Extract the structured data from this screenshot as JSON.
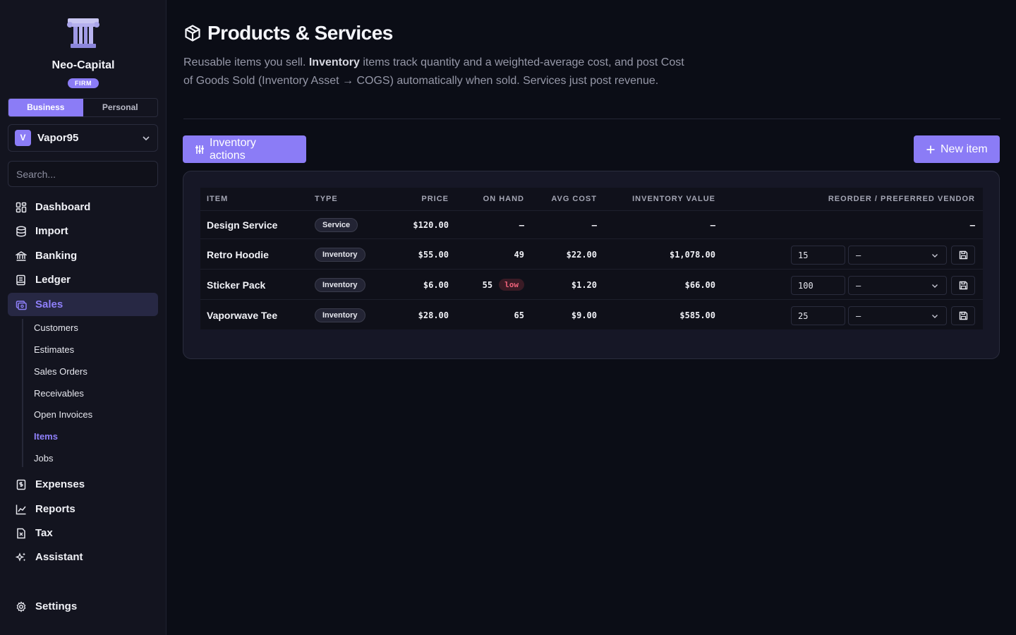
{
  "sidebar": {
    "brand": "Neo-Capital",
    "badge": "FIRM",
    "mode_tabs": [
      "Business",
      "Personal"
    ],
    "active_mode": "Business",
    "workspace": {
      "initial": "V",
      "name": "Vapor95"
    },
    "search_placeholder": "Search...",
    "nav": [
      {
        "label": "Dashboard",
        "icon": "dashboard-icon"
      },
      {
        "label": "Import",
        "icon": "database-icon"
      },
      {
        "label": "Banking",
        "icon": "bank-icon"
      },
      {
        "label": "Ledger",
        "icon": "ledger-icon"
      },
      {
        "label": "Sales",
        "icon": "sales-icon",
        "active": true
      }
    ],
    "sales_sub": [
      "Customers",
      "Estimates",
      "Sales Orders",
      "Receivables",
      "Open Invoices",
      "Items",
      "Jobs"
    ],
    "active_sub": "Items",
    "nav_bottom": [
      {
        "label": "Expenses",
        "icon": "receipt-icon"
      },
      {
        "label": "Reports",
        "icon": "chart-icon"
      },
      {
        "label": "Tax",
        "icon": "tax-icon"
      },
      {
        "label": "Assistant",
        "icon": "sparkle-icon"
      }
    ],
    "settings": "Settings"
  },
  "header": {
    "title": "Products & Services",
    "description_pre": "Reusable items you sell. ",
    "description_bold": "Inventory",
    "description_post": " items track quantity and a weighted-average cost, and post Cost of Goods Sold (Inventory Asset → COGS) automatically when sold. Services just post revenue."
  },
  "actions": {
    "inventory_label": "Inventory actions",
    "new_label": "New item"
  },
  "table": {
    "columns": [
      "ITEM",
      "TYPE",
      "PRICE",
      "ON HAND",
      "AVG COST",
      "INVENTORY VALUE",
      "REORDER / PREFERRED VENDOR"
    ],
    "rows": [
      {
        "name": "Design Service",
        "type": "Service",
        "price": "$120.00",
        "on_hand": "–",
        "avg_cost": "–",
        "inventory_value": "–",
        "reorder": "",
        "vendor": "–"
      },
      {
        "name": "Retro Hoodie",
        "type": "Inventory",
        "price": "$55.00",
        "on_hand": "49",
        "avg_cost": "$22.00",
        "inventory_value": "$1,078.00",
        "reorder": "15",
        "vendor": "–"
      },
      {
        "name": "Sticker Pack",
        "type": "Inventory",
        "price": "$6.00",
        "on_hand": "55",
        "low": "low",
        "avg_cost": "$1.20",
        "inventory_value": "$66.00",
        "reorder": "100",
        "vendor": "–"
      },
      {
        "name": "Vaporwave Tee",
        "type": "Inventory",
        "price": "$28.00",
        "on_hand": "65",
        "avg_cost": "$9.00",
        "inventory_value": "$585.00",
        "reorder": "25",
        "vendor": "–"
      }
    ]
  },
  "colors": {
    "accent": "#8b7cf6",
    "background": "#0b0d16",
    "sidebar": "#13141f",
    "low_badge": "#f0627a"
  }
}
